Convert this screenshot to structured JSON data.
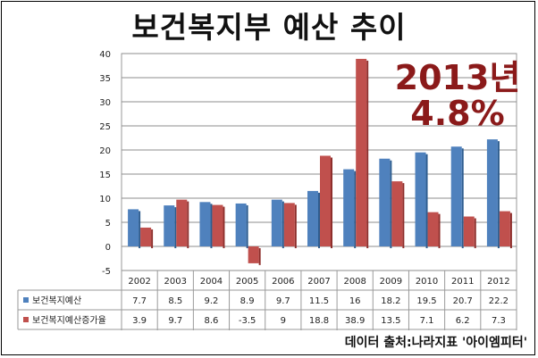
{
  "title": "보건복지부 예산 추이",
  "callout": {
    "line1": "2013년",
    "line2": "4.8%",
    "color": "#8b1a1a"
  },
  "source": "데이터 출처:나라지표 '아이엠피터'",
  "colors": {
    "series1": "#4f81bd",
    "series2": "#c0504d"
  },
  "chart_data": {
    "type": "bar",
    "title": "보건복지부 예산 추이",
    "categories": [
      "2002",
      "2003",
      "2004",
      "2005",
      "2006",
      "2007",
      "2008",
      "2009",
      "2010",
      "2011",
      "2012"
    ],
    "series": [
      {
        "name": "보건복지예산",
        "values": [
          7.7,
          8.5,
          9.2,
          8.9,
          9.7,
          11.5,
          16,
          18.2,
          19.5,
          20.7,
          22.2
        ]
      },
      {
        "name": "보건복지예산증가율",
        "values": [
          3.9,
          9.7,
          8.6,
          -3.5,
          9,
          18.8,
          38.9,
          13.5,
          7.1,
          6.2,
          7.3
        ]
      }
    ],
    "ylim": [
      -5,
      40
    ],
    "yticks": [
      -5,
      0,
      5,
      10,
      15,
      20,
      25,
      30,
      35,
      40
    ],
    "grid": true,
    "legend": "data-table"
  }
}
